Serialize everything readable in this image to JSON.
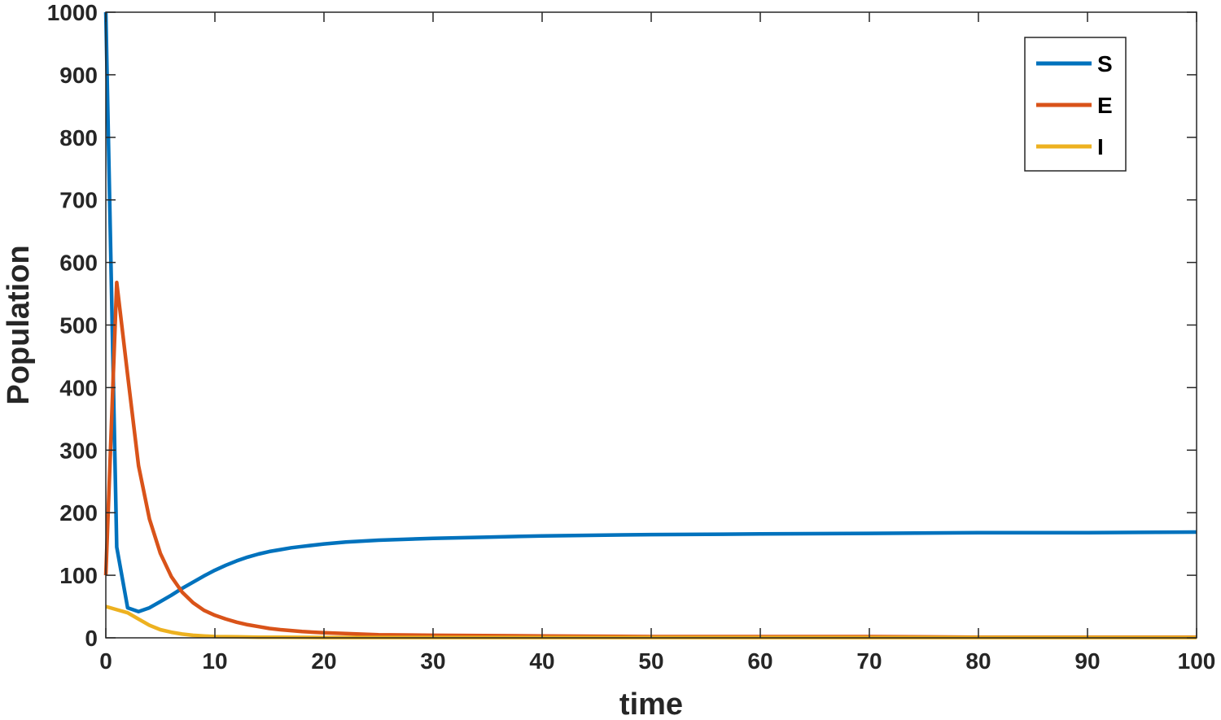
{
  "chart_data": {
    "type": "line",
    "title": "",
    "xlabel": "time",
    "ylabel": "Population",
    "xlim": [
      0,
      100
    ],
    "ylim": [
      0,
      1000
    ],
    "xticks": [
      0,
      10,
      20,
      30,
      40,
      50,
      60,
      70,
      80,
      90,
      100
    ],
    "yticks": [
      0,
      100,
      200,
      300,
      400,
      500,
      600,
      700,
      800,
      900,
      1000
    ],
    "xtick_labels": [
      "0",
      "10",
      "20",
      "30",
      "40",
      "50",
      "60",
      "70",
      "80",
      "90",
      "100"
    ],
    "ytick_labels": [
      "0",
      "100",
      "200",
      "300",
      "400",
      "500",
      "600",
      "700",
      "800",
      "900",
      "1000"
    ],
    "grid": false,
    "legend_position": "top-right",
    "series": [
      {
        "name": "S",
        "color": "#0072BD",
        "x": [
          0,
          1,
          2,
          3,
          4,
          5,
          6,
          7,
          8,
          9,
          10,
          11,
          12,
          13,
          14,
          15,
          16,
          17,
          18,
          20,
          22,
          25,
          30,
          35,
          40,
          50,
          60,
          70,
          80,
          90,
          100
        ],
        "y": [
          1000,
          145,
          48,
          42,
          48,
          58,
          68,
          79,
          89,
          99,
          108,
          116,
          123,
          129,
          134,
          138,
          141,
          144,
          146,
          150,
          153,
          156,
          159,
          161,
          163,
          165,
          166,
          167,
          168,
          168,
          169
        ]
      },
      {
        "name": "E",
        "color": "#D95319",
        "x": [
          0,
          1,
          2,
          3,
          4,
          5,
          6,
          7,
          8,
          9,
          10,
          11,
          12,
          13,
          14,
          15,
          16,
          18,
          20,
          25,
          30,
          40,
          50,
          60,
          70,
          80,
          90,
          100
        ],
        "y": [
          100,
          568,
          420,
          275,
          190,
          135,
          98,
          73,
          56,
          44,
          36,
          30,
          25,
          21,
          18,
          15,
          13,
          10,
          8,
          5,
          4,
          3,
          2,
          2,
          2,
          1,
          1,
          1
        ]
      },
      {
        "name": "I",
        "color": "#EDB120",
        "x": [
          0,
          1,
          2,
          3,
          4,
          5,
          6,
          7,
          8,
          9,
          10,
          12,
          14,
          16,
          20,
          25,
          30,
          40,
          50,
          60,
          70,
          80,
          90,
          100
        ],
        "y": [
          50,
          45,
          40,
          30,
          20,
          13,
          9,
          6,
          4,
          3,
          2,
          1.5,
          1,
          1,
          0.5,
          0.5,
          0.5,
          0.5,
          0.5,
          0.5,
          0.5,
          0.5,
          0.5,
          0.5
        ]
      }
    ]
  }
}
